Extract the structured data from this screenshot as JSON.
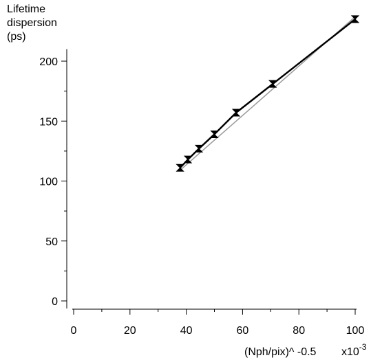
{
  "chart_data": {
    "type": "line",
    "ylabel_lines": [
      "Lifetime",
      "dispersion",
      "(ps)"
    ],
    "xlabel": "(Nph/pix)^ -0.5",
    "x_multiplier": "x10",
    "x_multiplier_exp": "-3",
    "xlim": [
      0,
      100
    ],
    "ylim": [
      0,
      210
    ],
    "x_ticks": [
      "0",
      "20",
      "40",
      "60",
      "80",
      "100"
    ],
    "y_ticks": [
      "0",
      "50",
      "100",
      "150",
      "200"
    ],
    "grid": false,
    "series": [
      {
        "color": "#000000",
        "marker": "bowtie",
        "x": [
          37.8,
          40.6,
          44.5,
          50.0,
          57.7,
          70.7,
          100.0
        ],
        "y": [
          111,
          118,
          127,
          139,
          157,
          181,
          235
        ]
      },
      {
        "color": "#999999",
        "marker": "none",
        "x": [
          37.8,
          100.0
        ],
        "y": [
          109,
          237
        ]
      }
    ]
  }
}
